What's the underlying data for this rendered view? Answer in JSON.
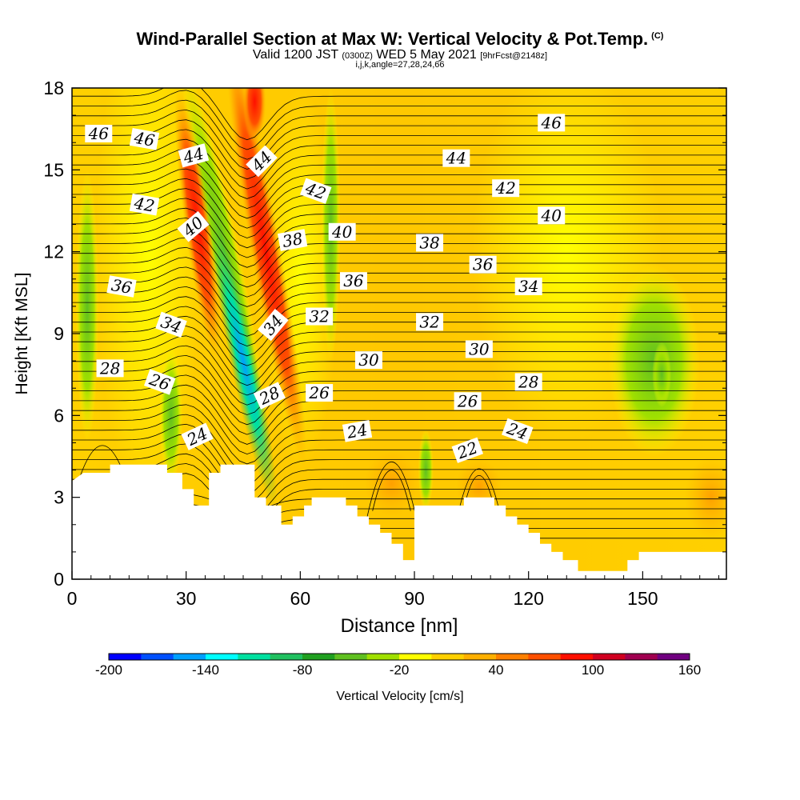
{
  "header": {
    "title": "Wind-Parallel Section at Max W: Vertical Velocity & Pot.Temp.",
    "title_mark": "(C)",
    "subtitle_prefix": "Valid 1200 JST",
    "subtitle_zulu": "(0300Z)",
    "subtitle_date": "WED 5 May 2021",
    "subtitle_fcst": "[9hrFcst@2148z]",
    "subtitle2": "i,j,k,angle=27,28,24,66"
  },
  "chart_data": {
    "type": "heatmap",
    "xlabel": "Distance [nm]",
    "ylabel": "Height [Kft MSL]",
    "xlim": [
      0,
      172
    ],
    "ylim": [
      0,
      18
    ],
    "x_ticks": [
      0,
      30,
      60,
      90,
      120,
      150
    ],
    "y_ticks": [
      0,
      3,
      6,
      9,
      12,
      15,
      18
    ],
    "colorbar": {
      "label": "Vertical Velocity [cm/s]",
      "min": -200,
      "max": 160,
      "tick_values": [
        -200,
        -140,
        -80,
        -20,
        40,
        100,
        160
      ],
      "colors": [
        "#0000ff",
        "#0050ff",
        "#00a0ff",
        "#00ffff",
        "#00e0a0",
        "#20c060",
        "#20a020",
        "#60c020",
        "#a0e000",
        "#ffff00",
        "#ffd000",
        "#ffb000",
        "#ff8000",
        "#ff5000",
        "#ff1000",
        "#d00020",
        "#a00050",
        "#700080"
      ]
    },
    "terrain_profile": [
      [
        0,
        3.6
      ],
      [
        3,
        3.9
      ],
      [
        10,
        3.9
      ],
      [
        10,
        4.2
      ],
      [
        25,
        4.2
      ],
      [
        25,
        3.9
      ],
      [
        29,
        3.9
      ],
      [
        29,
        3.3
      ],
      [
        32,
        3.3
      ],
      [
        32,
        2.7
      ],
      [
        36,
        2.7
      ],
      [
        36,
        3.9
      ],
      [
        39,
        3.9
      ],
      [
        39,
        4.2
      ],
      [
        48,
        4.2
      ],
      [
        48,
        3.0
      ],
      [
        51,
        3.0
      ],
      [
        51,
        2.7
      ],
      [
        55,
        2.7
      ],
      [
        55,
        2.0
      ],
      [
        58,
        2.0
      ],
      [
        58,
        2.3
      ],
      [
        61,
        2.3
      ],
      [
        61,
        2.7
      ],
      [
        63,
        2.7
      ],
      [
        63,
        3.0
      ],
      [
        72,
        3.0
      ],
      [
        72,
        2.7
      ],
      [
        75,
        2.7
      ],
      [
        75,
        2.3
      ],
      [
        78,
        2.3
      ],
      [
        78,
        2.0
      ],
      [
        81,
        2.0
      ],
      [
        81,
        1.7
      ],
      [
        84,
        1.7
      ],
      [
        84,
        1.3
      ],
      [
        87,
        1.3
      ],
      [
        87,
        0.7
      ],
      [
        90,
        0.7
      ],
      [
        90,
        2.7
      ],
      [
        103,
        2.7
      ],
      [
        103,
        3.0
      ],
      [
        111,
        3.0
      ],
      [
        111,
        2.7
      ],
      [
        114,
        2.7
      ],
      [
        114,
        2.3
      ],
      [
        117,
        2.3
      ],
      [
        117,
        2.0
      ],
      [
        120,
        2.0
      ],
      [
        120,
        1.7
      ],
      [
        123,
        1.7
      ],
      [
        123,
        1.3
      ],
      [
        126,
        1.3
      ],
      [
        126,
        1.0
      ],
      [
        129,
        1.0
      ],
      [
        129,
        0.7
      ],
      [
        133,
        0.7
      ],
      [
        133,
        0.3
      ],
      [
        146,
        0.3
      ],
      [
        146,
        0.7
      ],
      [
        149,
        0.7
      ],
      [
        149,
        1.0
      ],
      [
        172,
        1.0
      ]
    ],
    "theta_labels": [
      {
        "value": "46",
        "x": 7,
        "y": 16.3,
        "angle": 0
      },
      {
        "value": "46",
        "x": 19,
        "y": 16.1,
        "angle": 10
      },
      {
        "value": "44",
        "x": 32,
        "y": 15.5,
        "angle": -15
      },
      {
        "value": "44",
        "x": 50,
        "y": 15.3,
        "angle": -45
      },
      {
        "value": "44",
        "x": 101,
        "y": 15.4,
        "angle": 0
      },
      {
        "value": "46",
        "x": 126,
        "y": 16.7,
        "angle": 0
      },
      {
        "value": "42",
        "x": 19,
        "y": 13.7,
        "angle": 10
      },
      {
        "value": "42",
        "x": 64,
        "y": 14.2,
        "angle": 20
      },
      {
        "value": "42",
        "x": 114,
        "y": 14.3,
        "angle": 0
      },
      {
        "value": "40",
        "x": 32,
        "y": 12.9,
        "angle": -40
      },
      {
        "value": "40",
        "x": 71,
        "y": 12.7,
        "angle": 0
      },
      {
        "value": "40",
        "x": 126,
        "y": 13.3,
        "angle": 0
      },
      {
        "value": "38",
        "x": 58,
        "y": 12.4,
        "angle": -10
      },
      {
        "value": "38",
        "x": 94,
        "y": 12.3,
        "angle": 0
      },
      {
        "value": "36",
        "x": 108,
        "y": 11.5,
        "angle": 0
      },
      {
        "value": "36",
        "x": 13,
        "y": 10.7,
        "angle": 10
      },
      {
        "value": "36",
        "x": 74,
        "y": 10.9,
        "angle": 0
      },
      {
        "value": "34",
        "x": 120,
        "y": 10.7,
        "angle": 0
      },
      {
        "value": "34",
        "x": 26,
        "y": 9.3,
        "angle": 20
      },
      {
        "value": "34",
        "x": 53,
        "y": 9.3,
        "angle": -50
      },
      {
        "value": "32",
        "x": 65,
        "y": 9.6,
        "angle": 0
      },
      {
        "value": "32",
        "x": 94,
        "y": 9.4,
        "angle": 0
      },
      {
        "value": "30",
        "x": 78,
        "y": 8.0,
        "angle": 0
      },
      {
        "value": "30",
        "x": 107,
        "y": 8.4,
        "angle": 0
      },
      {
        "value": "28",
        "x": 10,
        "y": 7.7,
        "angle": 0
      },
      {
        "value": "28",
        "x": 120,
        "y": 7.2,
        "angle": 0
      },
      {
        "value": "26",
        "x": 23,
        "y": 7.2,
        "angle": 20
      },
      {
        "value": "26",
        "x": 65,
        "y": 6.8,
        "angle": 0
      },
      {
        "value": "26",
        "x": 104,
        "y": 6.5,
        "angle": 0
      },
      {
        "value": "28",
        "x": 52,
        "y": 6.7,
        "angle": -25
      },
      {
        "value": "24",
        "x": 33,
        "y": 5.2,
        "angle": -25
      },
      {
        "value": "24",
        "x": 75,
        "y": 5.4,
        "angle": -10
      },
      {
        "value": "24",
        "x": 117,
        "y": 5.4,
        "angle": 20
      },
      {
        "value": "22",
        "x": 104,
        "y": 4.7,
        "angle": -20
      }
    ]
  }
}
